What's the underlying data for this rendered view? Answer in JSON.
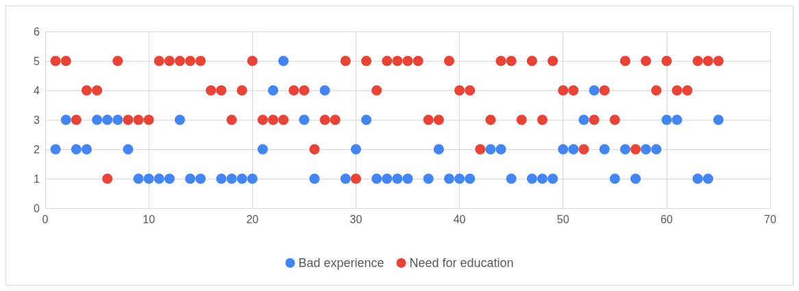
{
  "chart_data": {
    "type": "scatter",
    "x": [
      1,
      2,
      3,
      4,
      5,
      6,
      7,
      8,
      9,
      10,
      11,
      12,
      13,
      14,
      15,
      16,
      17,
      18,
      19,
      20,
      21,
      22,
      23,
      24,
      25,
      26,
      27,
      28,
      29,
      30,
      31,
      32,
      33,
      34,
      35,
      36,
      37,
      38,
      39,
      40,
      41,
      42,
      43,
      44,
      45,
      46,
      47,
      48,
      49,
      50,
      51,
      52,
      53,
      54,
      55,
      56,
      57,
      58,
      59,
      60,
      61,
      62,
      63,
      64,
      65
    ],
    "series": [
      {
        "name": "Bad experience",
        "color": "#4285f4",
        "values": [
          2,
          3,
          2,
          2,
          3,
          3,
          3,
          2,
          1,
          1,
          1,
          1,
          3,
          1,
          1,
          null,
          1,
          1,
          1,
          1,
          2,
          4,
          5,
          null,
          3,
          1,
          4,
          null,
          1,
          2,
          3,
          1,
          1,
          1,
          1,
          null,
          1,
          2,
          1,
          1,
          1,
          null,
          2,
          2,
          1,
          null,
          1,
          1,
          1,
          2,
          2,
          3,
          4,
          2,
          1,
          2,
          1,
          2,
          2,
          3,
          3,
          null,
          1,
          1,
          3
        ]
      },
      {
        "name": "Need for education",
        "color": "#ea4335",
        "values": [
          5,
          5,
          3,
          4,
          4,
          1,
          5,
          3,
          3,
          3,
          5,
          5,
          5,
          5,
          5,
          4,
          4,
          3,
          4,
          5,
          3,
          3,
          3,
          4,
          4,
          2,
          3,
          3,
          5,
          1,
          5,
          4,
          5,
          5,
          5,
          5,
          3,
          3,
          5,
          4,
          4,
          2,
          3,
          5,
          5,
          3,
          5,
          3,
          5,
          4,
          4,
          2,
          3,
          4,
          3,
          5,
          2,
          5,
          4,
          5,
          4,
          4,
          5,
          5,
          5
        ]
      }
    ],
    "xlim": [
      0,
      70
    ],
    "xticks": [
      0,
      10,
      20,
      30,
      40,
      50,
      60,
      70
    ],
    "ylim": [
      0,
      6
    ],
    "yticks": [
      0,
      1,
      2,
      3,
      4,
      5,
      6
    ],
    "grid": true,
    "legend": "bottom",
    "marker": "circle"
  }
}
